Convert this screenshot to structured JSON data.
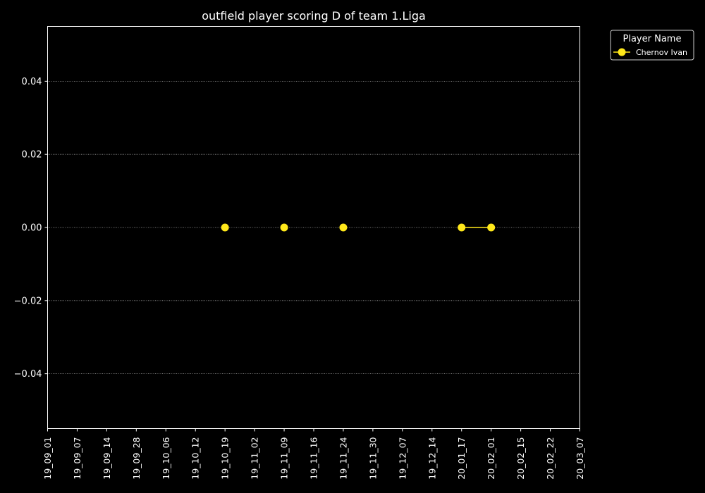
{
  "chart_data": {
    "type": "line",
    "title": "outfield player scoring D of team 1.Liga",
    "xlabel": "",
    "ylabel": "",
    "x_categories": [
      "19_09_01",
      "19_09_07",
      "19_09_14",
      "19_09_28",
      "19_10_06",
      "19_10_12",
      "19_10_19",
      "19_11_02",
      "19_11_09",
      "19_11_16",
      "19_11_24",
      "19_11_30",
      "19_12_07",
      "19_12_14",
      "20_01_17",
      "20_02_01",
      "20_02_15",
      "20_02_22",
      "20_03_07"
    ],
    "yticks": [
      -0.04,
      -0.02,
      0.0,
      0.02,
      0.04
    ],
    "ylim": [
      -0.055,
      0.055
    ],
    "grid": "horizontal dotted",
    "legend": {
      "title": "Player Name",
      "placement": "outside top-right"
    },
    "series": [
      {
        "name": "Chernov Ivan",
        "color": "#ffe81a",
        "segments": [
          [
            {
              "x": "19_10_19",
              "y": 0.0
            }
          ],
          [
            {
              "x": "19_11_09",
              "y": 0.0
            }
          ],
          [
            {
              "x": "19_11_24",
              "y": 0.0
            }
          ],
          [
            {
              "x": "20_01_17",
              "y": 0.0
            },
            {
              "x": "20_02_01",
              "y": 0.0
            }
          ]
        ]
      }
    ]
  }
}
